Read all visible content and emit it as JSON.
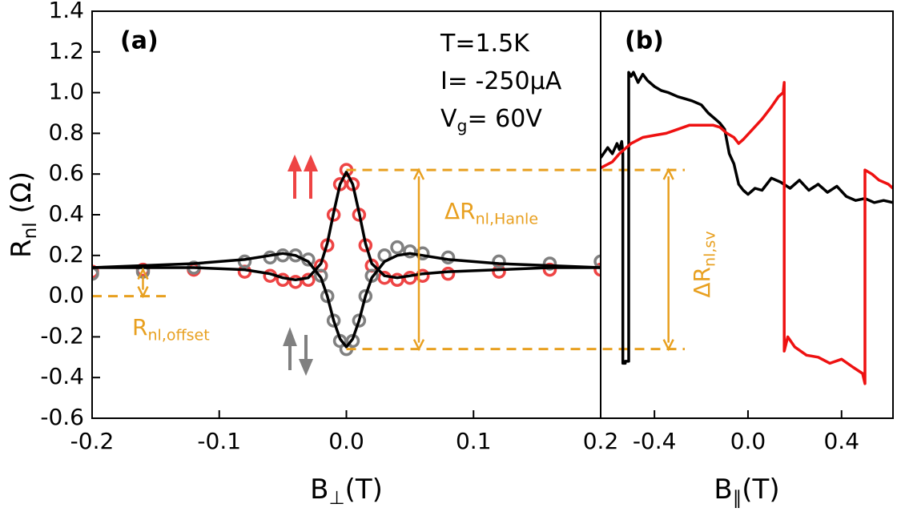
{
  "chart_data": [
    {
      "type": "scatter",
      "panel_label": "(a)",
      "annotations": [
        {
          "main": "T=1.5K"
        },
        {
          "main": "I= -250μA"
        },
        {
          "main": "V",
          "sub": "g",
          "rest": "= 60V"
        }
      ],
      "x_label": {
        "main": "B",
        "sub": "⊥",
        "rest": "(T)"
      },
      "y_label": {
        "main": "R",
        "sub": "nl",
        "rest": " (Ω)"
      },
      "xlim": [
        -0.2,
        0.2
      ],
      "xticks": [
        -0.2,
        -0.1,
        {
          "value": 0,
          "label": "0.0"
        },
        0.1,
        0.2
      ],
      "ylim": [
        -0.6,
        1.4
      ],
      "yticks": [
        -0.6,
        -0.4,
        -0.2,
        {
          "value": 0,
          "label": "0.0"
        },
        0.2,
        0.4,
        0.6,
        0.8,
        {
          "value": 1,
          "label": "1.0"
        },
        1.2,
        1.4
      ],
      "series": [
        {
          "style": "markers",
          "color": "#ee4444",
          "x": [
            -0.2,
            -0.16,
            -0.12,
            -0.08,
            -0.06,
            -0.05,
            -0.04,
            -0.03,
            -0.02,
            -0.015,
            -0.01,
            -0.005,
            0,
            0.005,
            0.01,
            0.015,
            0.02,
            0.03,
            0.04,
            0.05,
            0.06,
            0.08,
            0.12,
            0.16,
            0.2
          ],
          "values": [
            0.12,
            0.13,
            0.13,
            0.12,
            0.1,
            0.08,
            0.07,
            0.08,
            0.15,
            0.25,
            0.4,
            0.55,
            0.62,
            0.55,
            0.4,
            0.25,
            0.15,
            0.09,
            0.08,
            0.09,
            0.1,
            0.11,
            0.12,
            0.13,
            0.13
          ]
        },
        {
          "style": "markers",
          "color": "#808080",
          "x": [
            -0.2,
            -0.16,
            -0.12,
            -0.08,
            -0.06,
            -0.05,
            -0.04,
            -0.03,
            -0.02,
            -0.015,
            -0.01,
            -0.005,
            0,
            0.005,
            0.01,
            0.015,
            0.02,
            0.03,
            0.04,
            0.05,
            0.06,
            0.08,
            0.12,
            0.16,
            0.2
          ],
          "values": [
            0.11,
            0.12,
            0.14,
            0.17,
            0.19,
            0.2,
            0.2,
            0.18,
            0.1,
            0,
            -0.12,
            -0.22,
            -0.26,
            -0.22,
            -0.12,
            0,
            0.1,
            0.2,
            0.24,
            0.22,
            0.21,
            0.19,
            0.17,
            0.16,
            0.17
          ]
        },
        {
          "style": "line",
          "color": "#000000",
          "x": [
            -0.2,
            -0.16,
            -0.12,
            -0.08,
            -0.06,
            -0.05,
            -0.04,
            -0.03,
            -0.02,
            -0.015,
            -0.01,
            -0.005,
            0,
            0.005,
            0.01,
            0.015,
            0.02,
            0.03,
            0.04,
            0.05,
            0.06,
            0.08,
            0.12,
            0.16,
            0.2
          ],
          "values": [
            0.14,
            0.14,
            0.14,
            0.13,
            0.11,
            0.09,
            0.08,
            0.09,
            0.16,
            0.26,
            0.41,
            0.55,
            0.61,
            0.55,
            0.41,
            0.26,
            0.16,
            0.1,
            0.09,
            0.1,
            0.11,
            0.12,
            0.13,
            0.14,
            0.14
          ]
        },
        {
          "style": "line",
          "color": "#000000",
          "x": [
            -0.2,
            -0.16,
            -0.12,
            -0.08,
            -0.06,
            -0.05,
            -0.04,
            -0.03,
            -0.02,
            -0.015,
            -0.01,
            -0.005,
            0,
            0.005,
            0.01,
            0.015,
            0.02,
            0.03,
            0.04,
            0.05,
            0.06,
            0.08,
            0.12,
            0.16,
            0.2
          ],
          "values": [
            0.14,
            0.15,
            0.16,
            0.18,
            0.2,
            0.21,
            0.2,
            0.17,
            0.09,
            0,
            -0.12,
            -0.21,
            -0.25,
            -0.21,
            -0.12,
            0,
            0.09,
            0.17,
            0.2,
            0.21,
            0.2,
            0.18,
            0.16,
            0.15,
            0.14
          ]
        }
      ],
      "reference_color": "#e8a020",
      "reference_lines": [
        0.62,
        -0.26,
        0
      ],
      "arrows": [
        {
          "x": 0.057,
          "from": -0.26,
          "to": 0.62,
          "label": {
            "main": "ΔR",
            "sub": "nl,Hanle"
          }
        },
        {
          "x": -0.16,
          "from": 0,
          "to": 0.13,
          "label": {
            "main": "R",
            "sub": "nl,offset"
          }
        }
      ]
    },
    {
      "type": "line",
      "panel_label": "(b)",
      "x_label": {
        "main": "B",
        "sub": "∥",
        "rest": "(T)"
      },
      "xlim": [
        -0.63,
        0.62
      ],
      "xticks": [
        -0.4,
        {
          "value": 0,
          "label": "0.0"
        },
        0.4
      ],
      "ylim": [
        -0.6,
        1.4
      ],
      "series": [
        {
          "style": "line",
          "color": "#000000",
          "x": [
            -0.63,
            -0.6,
            -0.58,
            -0.56,
            -0.55,
            -0.54,
            -0.535,
            -0.535,
            -0.525,
            -0.525,
            -0.51,
            -0.51,
            -0.5,
            -0.49,
            -0.47,
            -0.45,
            -0.43,
            -0.4,
            -0.37,
            -0.34,
            -0.3,
            -0.27,
            -0.24,
            -0.2,
            -0.17,
            -0.14,
            -0.12,
            -0.1,
            -0.08,
            -0.06,
            -0.04,
            -0.02,
            0,
            0.03,
            0.06,
            0.1,
            0.14,
            0.18,
            0.22,
            0.26,
            0.3,
            0.34,
            0.38,
            0.42,
            0.46,
            0.5,
            0.54,
            0.58,
            0.62
          ],
          "values": [
            0.68,
            0.73,
            0.7,
            0.75,
            0.72,
            0.76,
            0.7,
            -0.33,
            -0.33,
            -0.32,
            -0.32,
            1.1,
            1.08,
            1.1,
            1.05,
            1.09,
            1.06,
            1.03,
            1.01,
            1.0,
            0.98,
            0.97,
            0.96,
            0.94,
            0.9,
            0.87,
            0.85,
            0.82,
            0.7,
            0.65,
            0.55,
            0.52,
            0.5,
            0.53,
            0.52,
            0.58,
            0.56,
            0.53,
            0.57,
            0.52,
            0.55,
            0.51,
            0.54,
            0.49,
            0.47,
            0.48,
            0.46,
            0.47,
            0.46
          ]
        },
        {
          "style": "line",
          "color": "#ee1111",
          "x": [
            -0.63,
            -0.58,
            -0.55,
            -0.5,
            -0.45,
            -0.4,
            -0.35,
            -0.3,
            -0.25,
            -0.2,
            -0.15,
            -0.12,
            -0.09,
            -0.06,
            -0.04,
            -0.02,
            0.02,
            0.06,
            0.1,
            0.13,
            0.15,
            0.155,
            0.155,
            0.17,
            0.2,
            0.25,
            0.3,
            0.35,
            0.4,
            0.45,
            0.49,
            0.5,
            0.5,
            0.53,
            0.56,
            0.6,
            0.62
          ],
          "values": [
            0.63,
            0.66,
            0.7,
            0.75,
            0.78,
            0.79,
            0.8,
            0.82,
            0.84,
            0.84,
            0.84,
            0.83,
            0.8,
            0.78,
            0.75,
            0.77,
            0.82,
            0.87,
            0.93,
            0.98,
            1.0,
            1.05,
            -0.27,
            -0.2,
            -0.25,
            -0.29,
            -0.3,
            -0.33,
            -0.31,
            -0.35,
            -0.38,
            -0.43,
            0.62,
            0.6,
            0.57,
            0.55,
            0.53
          ]
        }
      ],
      "reference_color": "#e8a020",
      "arrows": [
        {
          "x": -0.34,
          "from": -0.26,
          "to": 0.62,
          "label": {
            "main": "ΔR",
            "sub": "nl,sv"
          }
        }
      ]
    }
  ]
}
